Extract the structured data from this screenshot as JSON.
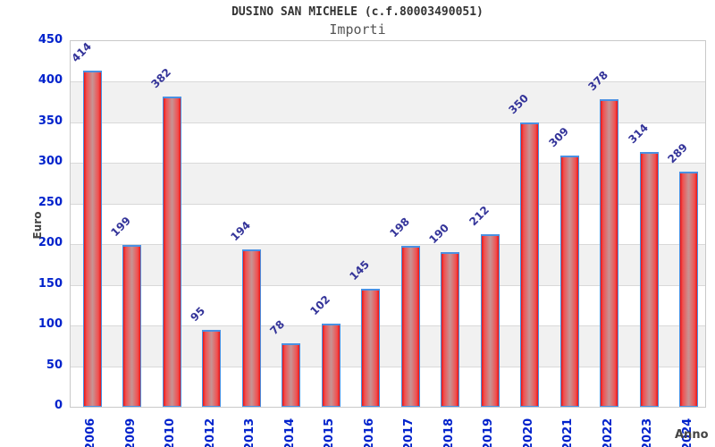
{
  "header": {
    "title": "DUSINO SAN MICHELE (c.f.80003490051)",
    "subtitle": "Importi"
  },
  "chart_data": {
    "type": "bar",
    "title": "DUSINO SAN MICHELE (c.f.80003490051)",
    "subtitle": "Importi",
    "xlabel": "Anno",
    "ylabel": "Euro",
    "categories": [
      "2006",
      "2009",
      "2010",
      "2012",
      "2013",
      "2014",
      "2015",
      "2016",
      "2017",
      "2018",
      "2019",
      "2020",
      "2021",
      "2022",
      "2023",
      "2024"
    ],
    "values": [
      414,
      199,
      382,
      95,
      194,
      78,
      102,
      145,
      198,
      190,
      212,
      350,
      309,
      378,
      314,
      289
    ],
    "ylim": [
      0,
      450
    ],
    "ytick_step": 50,
    "yticks": [
      0,
      50,
      100,
      150,
      200,
      250,
      300,
      350,
      400,
      450
    ],
    "grid": true,
    "legend": false,
    "value_labels_rotation_deg": -45,
    "xtick_rotation_deg": -90,
    "colors": {
      "tick_label": "#0022cc",
      "value_label": "#333399",
      "bar_edge": "#4a90e2",
      "bar_red_edge": "#e81616",
      "bar_red_mid": "#f05050",
      "bar_center": "#c79494",
      "band": "#f1f1f1",
      "gridline": "#d9d9d9",
      "title": "#333333",
      "subtitle": "#555555",
      "axis_title": "#444444",
      "plot_border": "#c9c9c9"
    }
  }
}
